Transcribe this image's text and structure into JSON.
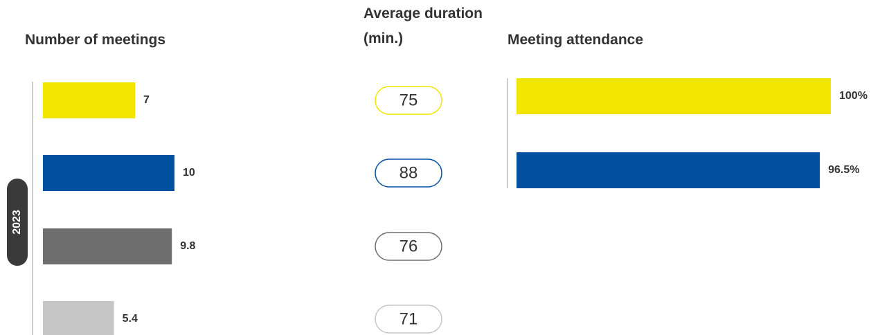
{
  "chart_data": [
    {
      "type": "bar",
      "title": "Number of meetings",
      "group_label": "2023",
      "values": [
        7,
        10,
        9.8,
        5.4
      ],
      "colors": [
        "#f2e500",
        "#0050a0",
        "#6e6e6e",
        "#c6c6c6"
      ]
    },
    {
      "type": "pill",
      "title": "Average duration (min.)",
      "values": [
        75,
        88,
        76,
        71
      ],
      "colors": [
        "#f2e500",
        "#0050a0",
        "#6e6e6e",
        "#c6c6c6"
      ]
    },
    {
      "type": "bar",
      "title": "Meeting attendance",
      "values": [
        100,
        96.5
      ],
      "value_labels": [
        "100%",
        "96.5%"
      ],
      "colors": [
        "#f2e500",
        "#0050a0"
      ]
    }
  ]
}
